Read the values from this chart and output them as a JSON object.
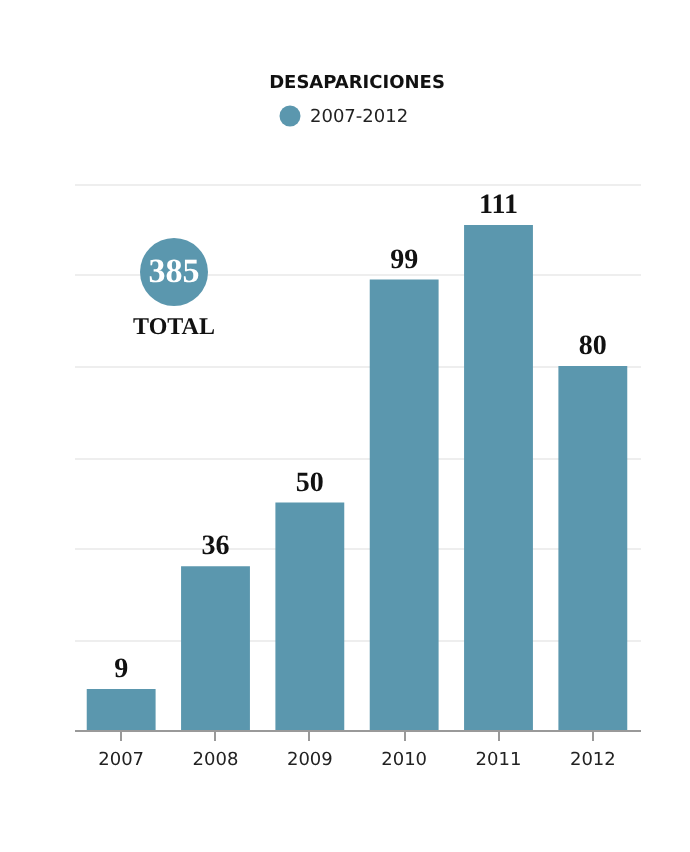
{
  "chart_data": {
    "type": "bar",
    "title": "DESAPARICIONES",
    "categories": [
      "2007",
      "2008",
      "2009",
      "2010",
      "2011",
      "2012"
    ],
    "series": [
      {
        "name": "2007-2012",
        "color": "#5b97ae",
        "values": [
          9,
          36,
          50,
          99,
          111,
          80
        ]
      }
    ],
    "ylim": [
      0,
      120
    ],
    "yticks": [
      {
        "value": 0,
        "label": null
      },
      {
        "value": 20,
        "label": null
      },
      {
        "value": 40,
        "label": null
      },
      {
        "value": 60,
        "label": null
      },
      {
        "value": 80,
        "label": null
      },
      {
        "value": 100,
        "label": null
      },
      {
        "value": 120,
        "label": null
      }
    ],
    "grid": "y",
    "tick_labels": "x",
    "legend": "top",
    "data_labels": true,
    "annotations": [
      "385",
      "TOTAL"
    ]
  }
}
